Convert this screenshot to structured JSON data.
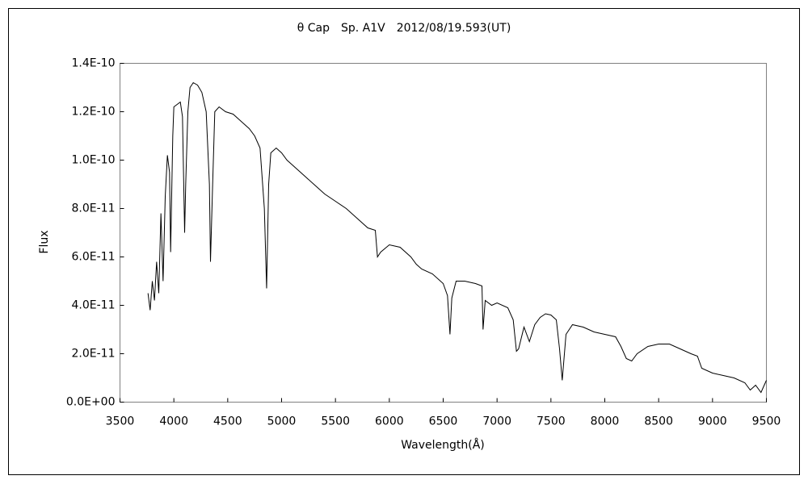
{
  "chart_data": {
    "type": "line",
    "title": "θ Cap　Sp. A1V　2012/08/19.593(UT)",
    "xlabel": "Wavelength(Å)",
    "ylabel": "Flux",
    "color": "#000000",
    "xlim": [
      3500,
      9500
    ],
    "xticks": [
      3500,
      4000,
      4500,
      5000,
      5500,
      6000,
      6500,
      7000,
      7500,
      8000,
      8500,
      9000,
      9500
    ],
    "ylim": [
      0,
      1.4e-10
    ],
    "yticks": [
      {
        "value": 0,
        "label": "0.0E+00"
      },
      {
        "value": 2e-11,
        "label": "2.0E-11"
      },
      {
        "value": 4e-11,
        "label": "4.0E-11"
      },
      {
        "value": 6e-11,
        "label": "6.0E-11"
      },
      {
        "value": 8e-11,
        "label": "8.0E-11"
      },
      {
        "value": 1e-10,
        "label": "1.0E-10"
      },
      {
        "value": 1.2e-10,
        "label": "1.2E-10"
      },
      {
        "value": 1.4e-10,
        "label": "1.4E-10"
      }
    ],
    "grid": false,
    "x": [
      3760,
      3780,
      3800,
      3820,
      3840,
      3860,
      3880,
      3900,
      3920,
      3940,
      3960,
      3970,
      3990,
      4000,
      4030,
      4060,
      4080,
      4100,
      4110,
      4130,
      4150,
      4180,
      4220,
      4260,
      4300,
      4330,
      4340,
      4360,
      4380,
      4420,
      4480,
      4550,
      4600,
      4650,
      4700,
      4750,
      4800,
      4840,
      4861,
      4880,
      4900,
      4950,
      5000,
      5050,
      5100,
      5150,
      5200,
      5300,
      5400,
      5500,
      5600,
      5700,
      5800,
      5870,
      5890,
      5920,
      6000,
      6100,
      6200,
      6250,
      6300,
      6400,
      6500,
      6540,
      6563,
      6580,
      6620,
      6700,
      6800,
      6860,
      6870,
      6890,
      6950,
      7000,
      7100,
      7150,
      7180,
      7200,
      7250,
      7300,
      7350,
      7400,
      7450,
      7500,
      7550,
      7580,
      7605,
      7640,
      7700,
      7800,
      7900,
      8000,
      8100,
      8150,
      8200,
      8250,
      8300,
      8400,
      8500,
      8600,
      8700,
      8800,
      8860,
      8900,
      9000,
      9100,
      9200,
      9300,
      9350,
      9400,
      9450,
      9500
    ],
    "values": [
      4.5e-11,
      3.8e-11,
      5e-11,
      4.2e-11,
      5.8e-11,
      4.5e-11,
      7.8e-11,
      5e-11,
      8.5e-11,
      1.02e-10,
      9.5e-11,
      6.2e-11,
      1.1e-10,
      1.22e-10,
      1.23e-10,
      1.24e-10,
      1.18e-10,
      7e-11,
      9e-11,
      1.2e-10,
      1.3e-10,
      1.32e-10,
      1.31e-10,
      1.28e-10,
      1.2e-10,
      9e-11,
      5.8e-11,
      9e-11,
      1.2e-10,
      1.22e-10,
      1.2e-10,
      1.19e-10,
      1.17e-10,
      1.15e-10,
      1.13e-10,
      1.1e-10,
      1.05e-10,
      8e-11,
      4.7e-11,
      9e-11,
      1.03e-10,
      1.05e-10,
      1.03e-10,
      1e-10,
      9.8e-11,
      9.6e-11,
      9.4e-11,
      9e-11,
      8.6e-11,
      8.3e-11,
      8e-11,
      7.6e-11,
      7.2e-11,
      7.1e-11,
      6e-11,
      6.2e-11,
      6.5e-11,
      6.4e-11,
      6e-11,
      5.7e-11,
      5.5e-11,
      5.3e-11,
      4.9e-11,
      4.4e-11,
      2.8e-11,
      4.3e-11,
      5e-11,
      5e-11,
      4.9e-11,
      4.8e-11,
      3e-11,
      4.2e-11,
      4e-11,
      4.1e-11,
      3.9e-11,
      3.4e-11,
      2.1e-11,
      2.2e-11,
      3.1e-11,
      2.5e-11,
      3.2e-11,
      3.5e-11,
      3.65e-11,
      3.6e-11,
      3.4e-11,
      2.2e-11,
      9e-12,
      2.8e-11,
      3.2e-11,
      3.1e-11,
      2.9e-11,
      2.8e-11,
      2.7e-11,
      2.3e-11,
      1.8e-11,
      1.7e-11,
      2e-11,
      2.3e-11,
      2.4e-11,
      2.4e-11,
      2.2e-11,
      2e-11,
      1.9e-11,
      1.4e-11,
      1.2e-11,
      1.1e-11,
      1e-11,
      8e-12,
      5e-12,
      7e-12,
      4e-12,
      9e-12
    ]
  }
}
